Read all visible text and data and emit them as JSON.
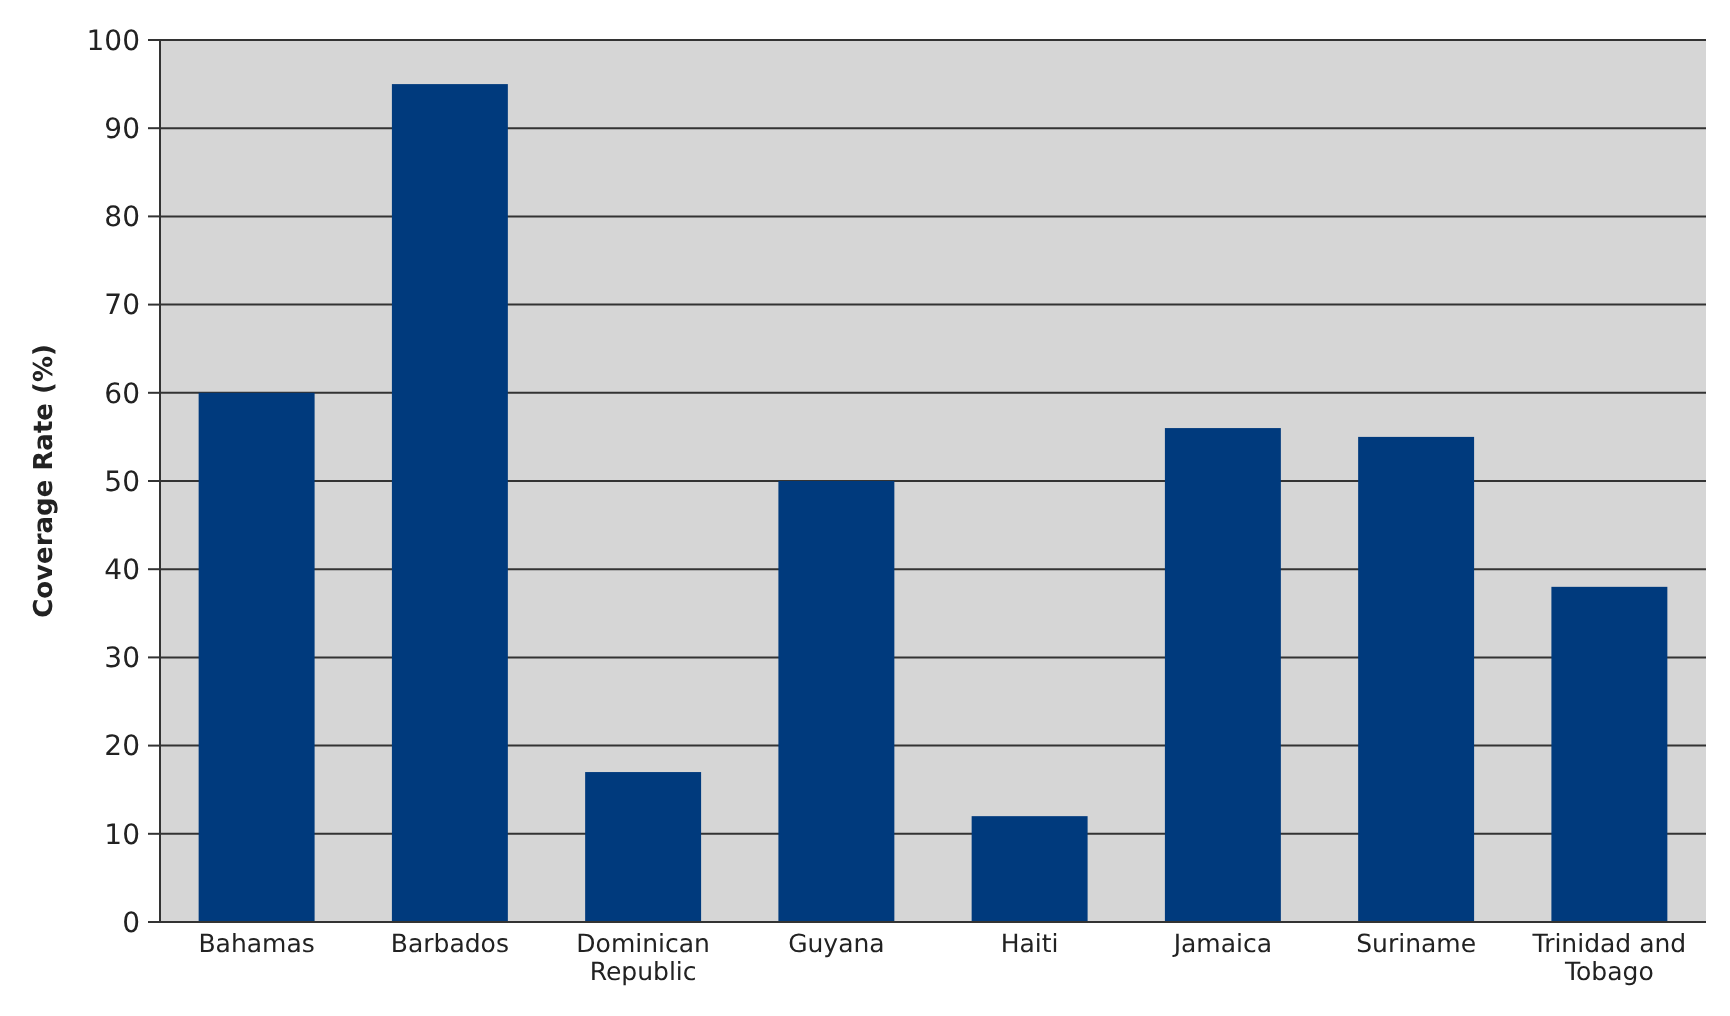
{
  "chart_data": {
    "type": "bar",
    "ylabel": "Coverage Rate (%)",
    "categories": [
      "Bahamas",
      "Barbados",
      "Dominican Republic",
      "Guyana",
      "Haiti",
      "Jamaica",
      "Suriname",
      "Trinidad and Tobago"
    ],
    "values": [
      60,
      95,
      17,
      50,
      12,
      56,
      55,
      38
    ],
    "color": "#003a7d",
    "ylim": [
      0,
      100
    ],
    "yticks": [
      0,
      10,
      20,
      30,
      40,
      50,
      60,
      70,
      80,
      90,
      100
    ],
    "grid": "y"
  }
}
